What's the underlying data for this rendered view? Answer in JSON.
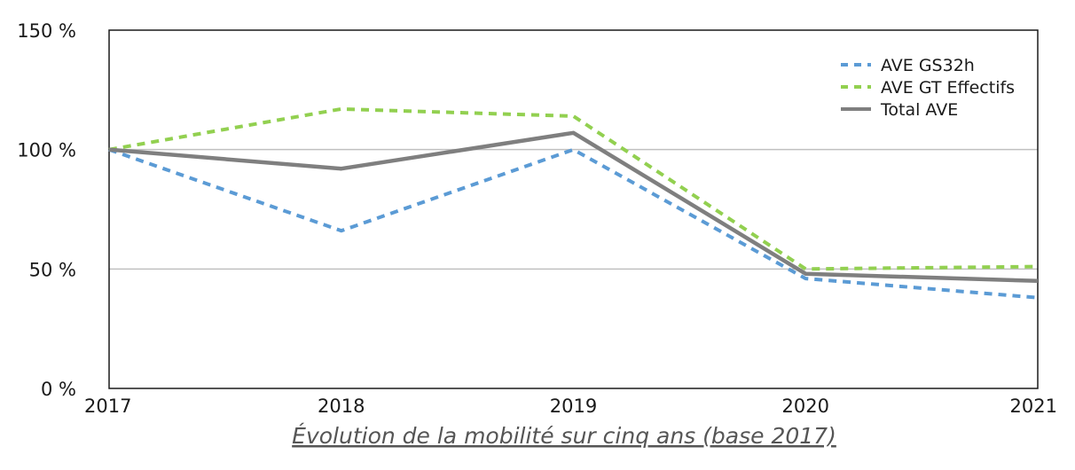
{
  "chart_data": {
    "type": "line",
    "title": "Évolution de la mobilité sur cinq ans (base 2017)",
    "xlabel": "",
    "ylabel": "",
    "categories": [
      "2017",
      "2018",
      "2019",
      "2020",
      "2021"
    ],
    "ylim": [
      0,
      150
    ],
    "yticks": [
      0,
      50,
      100,
      150
    ],
    "ytick_labels": [
      "0 %",
      "50 %",
      "100 %",
      "150 %"
    ],
    "grid": "horizontal",
    "legend_position": "top-right",
    "series": [
      {
        "name": "AVE GS32h",
        "values": [
          100,
          66,
          100,
          46,
          38
        ],
        "color": "#5b9bd5",
        "style": "dashed"
      },
      {
        "name": "AVE GT Effectifs",
        "values": [
          100,
          117,
          114,
          50,
          51
        ],
        "color": "#92d050",
        "style": "dashed"
      },
      {
        "name": "Total AVE",
        "values": [
          100,
          92,
          107,
          48,
          45
        ],
        "color": "#7f7f7f",
        "style": "solid"
      }
    ]
  }
}
